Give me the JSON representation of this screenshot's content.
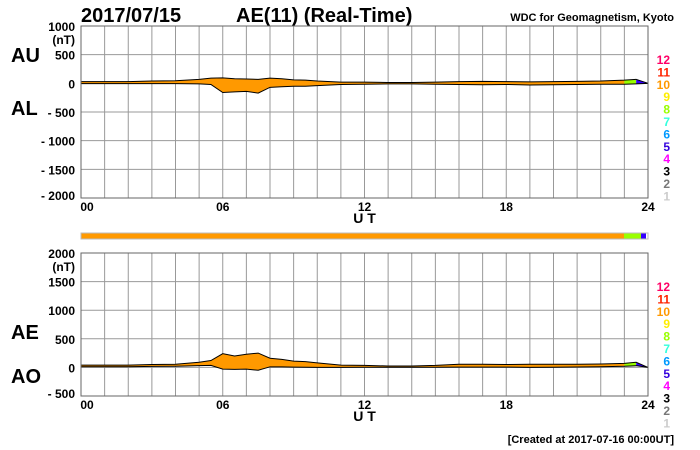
{
  "header": {
    "date": "2017/07/15",
    "title": "AE(11) (Real-Time)",
    "source": "WDC for Geomagnetism, Kyoto"
  },
  "footer": {
    "created": "[Created at 2017-07-16 00:00UT]"
  },
  "colors": {
    "fill": "#ff9900",
    "fill_late": "#99ff00",
    "fill_end": "#3300ff",
    "line": "#000000",
    "grid": "#999999"
  },
  "station_legend": [
    {
      "label": "12",
      "color": "#ff0066"
    },
    {
      "label": "11",
      "color": "#ff2200"
    },
    {
      "label": "10",
      "color": "#ff9900"
    },
    {
      "label": "9",
      "color": "#ffee00"
    },
    {
      "label": "8",
      "color": "#99ff00"
    },
    {
      "label": "7",
      "color": "#33ffdd"
    },
    {
      "label": "6",
      "color": "#0099ff"
    },
    {
      "label": "5",
      "color": "#3300dd"
    },
    {
      "label": "4",
      "color": "#ff00ff"
    },
    {
      "label": "3",
      "color": "#000000"
    },
    {
      "label": "2",
      "color": "#777777"
    },
    {
      "label": "1",
      "color": "#cccccc"
    }
  ],
  "chart_data": [
    {
      "type": "area",
      "name": "AU/AL",
      "ylabel_top": "AU",
      "ylabel_bottom": "AL",
      "unit": "(nT)",
      "xlabel": "U T",
      "ylim": [
        -2000,
        1000
      ],
      "yticks": [
        "1000",
        "500",
        "0",
        "- 500",
        "- 1000",
        "- 1500",
        "- 2000"
      ],
      "ytick_values": [
        1000,
        500,
        0,
        -500,
        -1000,
        -1500,
        -2000
      ],
      "xlim": [
        0,
        24
      ],
      "xticks": [
        "00",
        "06",
        "12",
        "18",
        "24"
      ],
      "grid": true,
      "x": [
        0,
        1,
        2,
        3,
        4,
        5,
        5.5,
        6,
        6.5,
        7,
        7.5,
        8,
        8.5,
        9,
        9.5,
        10,
        11,
        12,
        13,
        14,
        15,
        16,
        17,
        18,
        19,
        20,
        21,
        22,
        23,
        23.5,
        24
      ],
      "series": [
        {
          "name": "AU",
          "values": [
            30,
            30,
            30,
            40,
            45,
            70,
            90,
            95,
            80,
            75,
            70,
            90,
            80,
            60,
            55,
            40,
            20,
            20,
            15,
            15,
            20,
            30,
            35,
            30,
            25,
            30,
            35,
            40,
            55,
            70,
            0
          ]
        },
        {
          "name": "AL",
          "values": [
            -5,
            -5,
            -5,
            -5,
            -5,
            -10,
            -20,
            -160,
            -150,
            -140,
            -170,
            -70,
            -60,
            -50,
            -50,
            -40,
            -20,
            -15,
            -10,
            -10,
            -15,
            -20,
            -25,
            -20,
            -30,
            -25,
            -20,
            -15,
            -15,
            -10,
            0
          ]
        }
      ]
    },
    {
      "type": "area",
      "name": "AE/AO",
      "ylabel_top": "AE",
      "ylabel_bottom": "AO",
      "unit": "(nT)",
      "xlabel": "U T",
      "ylim": [
        -500,
        2000
      ],
      "yticks": [
        "2000",
        "1500",
        "1000",
        "500",
        "0",
        "- 500"
      ],
      "ytick_values": [
        2000,
        1500,
        1000,
        500,
        0,
        -500
      ],
      "xlim": [
        0,
        24
      ],
      "xticks": [
        "00",
        "06",
        "12",
        "18",
        "24"
      ],
      "grid": true,
      "x": [
        0,
        1,
        2,
        3,
        4,
        5,
        5.5,
        6,
        6.5,
        7,
        7.5,
        8,
        8.5,
        9,
        9.5,
        10,
        11,
        12,
        13,
        14,
        15,
        16,
        17,
        18,
        19,
        20,
        21,
        22,
        23,
        23.5,
        24
      ],
      "series": [
        {
          "name": "AE",
          "values": [
            40,
            40,
            40,
            50,
            55,
            90,
            120,
            240,
            200,
            230,
            250,
            160,
            140,
            110,
            100,
            80,
            40,
            35,
            25,
            25,
            35,
            55,
            55,
            50,
            55,
            55,
            55,
            60,
            70,
            90,
            0
          ]
        },
        {
          "name": "AO",
          "values": [
            12,
            12,
            12,
            17,
            20,
            30,
            35,
            -30,
            -35,
            -30,
            -50,
            10,
            10,
            5,
            3,
            0,
            0,
            3,
            3,
            3,
            3,
            5,
            5,
            5,
            0,
            3,
            8,
            12,
            20,
            30,
            0
          ]
        }
      ]
    }
  ]
}
